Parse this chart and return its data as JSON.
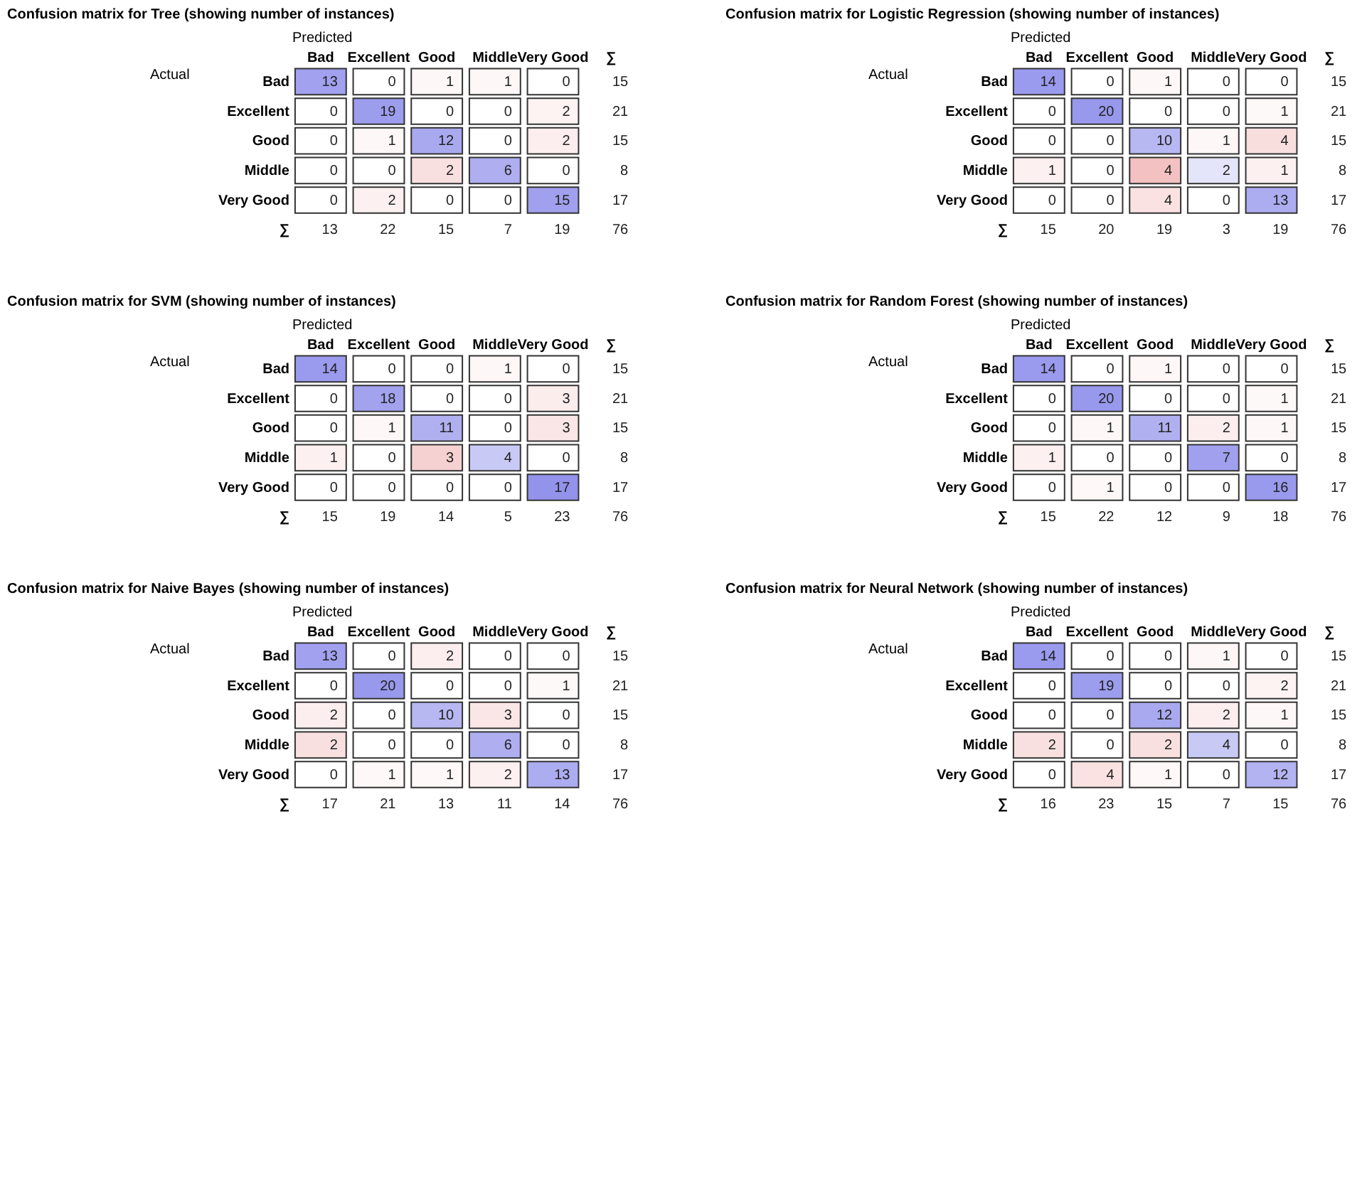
{
  "chart_data": [
    {
      "type": "heatmap",
      "title": "Confusion matrix for Tree (showing number of instances)",
      "xlabel": "Predicted",
      "ylabel": "Actual",
      "data_labels": true,
      "categories": [
        "Bad",
        "Excellent",
        "Good",
        "Middle",
        "Very Good",
        "∑"
      ],
      "y_categories": [
        "Bad",
        "Excellent",
        "Good",
        "Middle",
        "Very Good",
        "∑"
      ],
      "cells": [
        [
          13,
          0,
          1,
          1,
          0,
          15
        ],
        [
          0,
          19,
          0,
          0,
          2,
          21
        ],
        [
          0,
          1,
          12,
          0,
          2,
          15
        ],
        [
          0,
          0,
          2,
          6,
          0,
          8
        ],
        [
          0,
          2,
          0,
          0,
          15,
          17
        ],
        [
          13,
          22,
          15,
          7,
          19,
          76
        ]
      ]
    },
    {
      "type": "heatmap",
      "title": "Confusion matrix for Logistic Regression (showing number of instances)",
      "xlabel": "Predicted",
      "ylabel": "Actual",
      "data_labels": true,
      "categories": [
        "Bad",
        "Excellent",
        "Good",
        "Middle",
        "Very Good",
        "∑"
      ],
      "y_categories": [
        "Bad",
        "Excellent",
        "Good",
        "Middle",
        "Very Good",
        "∑"
      ],
      "cells": [
        [
          14,
          0,
          1,
          0,
          0,
          15
        ],
        [
          0,
          20,
          0,
          0,
          1,
          21
        ],
        [
          0,
          0,
          10,
          1,
          4,
          15
        ],
        [
          1,
          0,
          4,
          2,
          1,
          8
        ],
        [
          0,
          0,
          4,
          0,
          13,
          17
        ],
        [
          15,
          20,
          19,
          3,
          19,
          76
        ]
      ]
    },
    {
      "type": "heatmap",
      "title": "Confusion matrix for SVM (showing number of instances)",
      "xlabel": "Predicted",
      "ylabel": "Actual",
      "data_labels": true,
      "categories": [
        "Bad",
        "Excellent",
        "Good",
        "Middle",
        "Very Good",
        "∑"
      ],
      "y_categories": [
        "Bad",
        "Excellent",
        "Good",
        "Middle",
        "Very Good",
        "∑"
      ],
      "cells": [
        [
          14,
          0,
          0,
          1,
          0,
          15
        ],
        [
          0,
          18,
          0,
          0,
          3,
          21
        ],
        [
          0,
          1,
          11,
          0,
          3,
          15
        ],
        [
          1,
          0,
          3,
          4,
          0,
          8
        ],
        [
          0,
          0,
          0,
          0,
          17,
          17
        ],
        [
          15,
          19,
          14,
          5,
          23,
          76
        ]
      ]
    },
    {
      "type": "heatmap",
      "title": "Confusion matrix for Random Forest (showing number of instances)",
      "xlabel": "Predicted",
      "ylabel": "Actual",
      "data_labels": true,
      "categories": [
        "Bad",
        "Excellent",
        "Good",
        "Middle",
        "Very Good",
        "∑"
      ],
      "y_categories": [
        "Bad",
        "Excellent",
        "Good",
        "Middle",
        "Very Good",
        "∑"
      ],
      "cells": [
        [
          14,
          0,
          1,
          0,
          0,
          15
        ],
        [
          0,
          20,
          0,
          0,
          1,
          21
        ],
        [
          0,
          1,
          11,
          2,
          1,
          15
        ],
        [
          1,
          0,
          0,
          7,
          0,
          8
        ],
        [
          0,
          1,
          0,
          0,
          16,
          17
        ],
        [
          15,
          22,
          12,
          9,
          18,
          76
        ]
      ]
    },
    {
      "type": "heatmap",
      "title": "Confusion matrix for Naive Bayes (showing number of instances)",
      "xlabel": "Predicted",
      "ylabel": "Actual",
      "data_labels": true,
      "categories": [
        "Bad",
        "Excellent",
        "Good",
        "Middle",
        "Very Good",
        "∑"
      ],
      "y_categories": [
        "Bad",
        "Excellent",
        "Good",
        "Middle",
        "Very Good",
        "∑"
      ],
      "cells": [
        [
          13,
          0,
          2,
          0,
          0,
          15
        ],
        [
          0,
          20,
          0,
          0,
          1,
          21
        ],
        [
          2,
          0,
          10,
          3,
          0,
          15
        ],
        [
          2,
          0,
          0,
          6,
          0,
          8
        ],
        [
          0,
          1,
          1,
          2,
          13,
          17
        ],
        [
          17,
          21,
          13,
          11,
          14,
          76
        ]
      ]
    },
    {
      "type": "heatmap",
      "title": "Confusion matrix for Neural Network (showing number of instances)",
      "xlabel": "Predicted",
      "ylabel": "Actual",
      "data_labels": true,
      "categories": [
        "Bad",
        "Excellent",
        "Good",
        "Middle",
        "Very Good",
        "∑"
      ],
      "y_categories": [
        "Bad",
        "Excellent",
        "Good",
        "Middle",
        "Very Good",
        "∑"
      ],
      "cells": [
        [
          14,
          0,
          0,
          1,
          0,
          15
        ],
        [
          0,
          19,
          0,
          0,
          2,
          21
        ],
        [
          0,
          0,
          12,
          2,
          1,
          15
        ],
        [
          2,
          0,
          2,
          4,
          0,
          8
        ],
        [
          0,
          4,
          1,
          0,
          12,
          17
        ],
        [
          16,
          23,
          15,
          7,
          15,
          76
        ]
      ]
    }
  ]
}
